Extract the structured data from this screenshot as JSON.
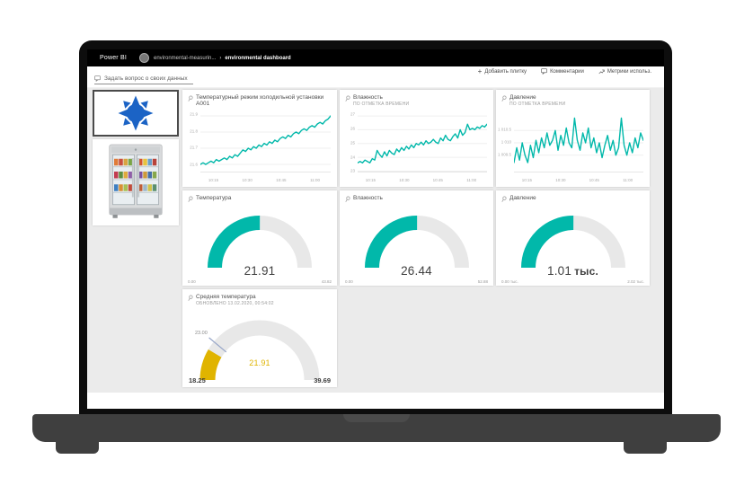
{
  "app": {
    "brand": "Power BI",
    "breadcrumb": {
      "workspace": "environmental-measurin...",
      "separator": "›",
      "current": "environmental dashboard"
    },
    "toolbar": {
      "add_tile": "Добавить плитку",
      "comments": "Комментарии",
      "usage_metrics": "Метрики использ."
    },
    "qa_prompt": "Задать вопрос о своих данных"
  },
  "colors": {
    "teal": "#01B8AA",
    "gauge_yellow": "#E0B400",
    "brand_yellow": "#F2C811",
    "target_line": "#96A5C8",
    "header_bg": "#000000",
    "canvas_bg": "#EBEBEB"
  },
  "chart_data": [
    {
      "type": "line",
      "title": "Температурный режим холодильной установки A001",
      "subtitle": "",
      "color": "#01B8AA",
      "ylim": [
        21.55,
        21.95
      ],
      "y_ticks": [
        {
          "value": 21.9,
          "label": "21.9"
        },
        {
          "value": 21.8,
          "label": "21.8"
        },
        {
          "value": 21.7,
          "label": "21.7"
        },
        {
          "value": 21.6,
          "label": "21.6"
        }
      ],
      "x_ticks": [
        "10:15",
        "10:30",
        "10:45",
        "11:00"
      ],
      "values": [
        21.6,
        21.61,
        21.6,
        21.61,
        21.62,
        21.61,
        21.63,
        21.62,
        21.63,
        21.64,
        21.63,
        21.65,
        21.64,
        21.66,
        21.65,
        21.67,
        21.69,
        21.68,
        21.7,
        21.69,
        21.71,
        21.7,
        21.72,
        21.71,
        21.73,
        21.72,
        21.74,
        21.73,
        21.75,
        21.74,
        21.76,
        21.77,
        21.76,
        21.78,
        21.77,
        21.79,
        21.8,
        21.79,
        21.81,
        21.82,
        21.81,
        21.83,
        21.84,
        21.83,
        21.85,
        21.86,
        21.85,
        21.87,
        21.88,
        21.9
      ]
    },
    {
      "type": "line",
      "title": "Влажность",
      "subtitle": "ПО ОТМЕТКА ВРЕМЕНИ",
      "color": "#01B8AA",
      "ylim": [
        22.9,
        27.2
      ],
      "y_ticks": [
        {
          "value": 27,
          "label": "27"
        },
        {
          "value": 26,
          "label": "26"
        },
        {
          "value": 25,
          "label": "25"
        },
        {
          "value": 24,
          "label": "24"
        },
        {
          "value": 23,
          "label": "23"
        }
      ],
      "x_ticks": [
        "10:15",
        "10:30",
        "10:45",
        "11:00"
      ],
      "values": [
        23.6,
        23.7,
        23.6,
        23.8,
        23.7,
        23.6,
        23.9,
        23.8,
        24.5,
        24.2,
        24.0,
        24.4,
        24.1,
        24.5,
        24.3,
        24.2,
        24.6,
        24.4,
        24.7,
        24.5,
        24.8,
        24.6,
        24.9,
        24.7,
        25.0,
        24.9,
        25.1,
        24.9,
        25.2,
        25.0,
        25.1,
        25.3,
        25.1,
        25.0,
        25.4,
        25.2,
        25.6,
        25.3,
        25.2,
        25.5,
        25.7,
        25.4,
        26.0,
        25.6,
        25.8,
        26.4,
        26.0,
        26.1,
        26.0,
        26.2,
        26.1,
        26.3,
        26.2,
        26.4
      ]
    },
    {
      "type": "line",
      "title": "Давление",
      "subtitle": "ПО ОТМЕТКА ВРЕМЕНИ",
      "color": "#01B8AA",
      "ylim": [
        1008.8,
        1011.2
      ],
      "y_ticks": [
        {
          "value": 1010.5,
          "label": "1 010.5"
        },
        {
          "value": 1010.0,
          "label": "1 010"
        },
        {
          "value": 1009.5,
          "label": "1 009.5"
        }
      ],
      "x_ticks": [
        "10:15",
        "10:30",
        "10:45",
        "11:00"
      ],
      "values": [
        1009.2,
        1009.8,
        1009.3,
        1010.0,
        1009.5,
        1009.2,
        1009.9,
        1009.4,
        1010.1,
        1009.6,
        1010.2,
        1009.8,
        1010.4,
        1009.9,
        1010.1,
        1010.5,
        1009.7,
        1010.3,
        1009.9,
        1010.6,
        1010.0,
        1009.8,
        1011.0,
        1010.1,
        1009.7,
        1010.4,
        1010.0,
        1010.6,
        1009.8,
        1010.2,
        1009.6,
        1010.0,
        1009.4,
        1009.9,
        1010.3,
        1009.7,
        1010.1,
        1009.5,
        1009.8,
        1011.0,
        1009.9,
        1009.5,
        1010.0,
        1009.6,
        1010.2,
        1009.8,
        1010.4,
        1010.1
      ]
    },
    {
      "type": "gauge",
      "title": "Температура",
      "value": 21.91,
      "display": "21.91",
      "suffix": "",
      "min": 0,
      "max": 43.82,
      "min_label": "0.00",
      "max_label": "43.82",
      "color": "#01B8AA"
    },
    {
      "type": "gauge",
      "title": "Влажность",
      "value": 26.44,
      "display": "26.44",
      "suffix": "",
      "min": 0,
      "max": 52.88,
      "min_label": "0.00",
      "max_label": "52.88",
      "color": "#01B8AA"
    },
    {
      "type": "gauge",
      "title": "Давление",
      "value": 1.01,
      "display": "1.01",
      "suffix": "тыс.",
      "min": 0,
      "max": 2.02,
      "min_label": "0.00 тыс.",
      "max_label": "2.02 тыс.",
      "color": "#01B8AA"
    },
    {
      "type": "gauge",
      "title": "Средняя температура",
      "subtitle": "ОБНОВЛЕНО 13.02.2020, 00:54:02",
      "value": 21.91,
      "display": "21.91",
      "suffix": "",
      "min": 18.25,
      "max": 39.69,
      "min_label": "18.25",
      "max_label": "39.69",
      "target": 23.0,
      "target_label": "23.00",
      "color": "#E0B400"
    }
  ]
}
